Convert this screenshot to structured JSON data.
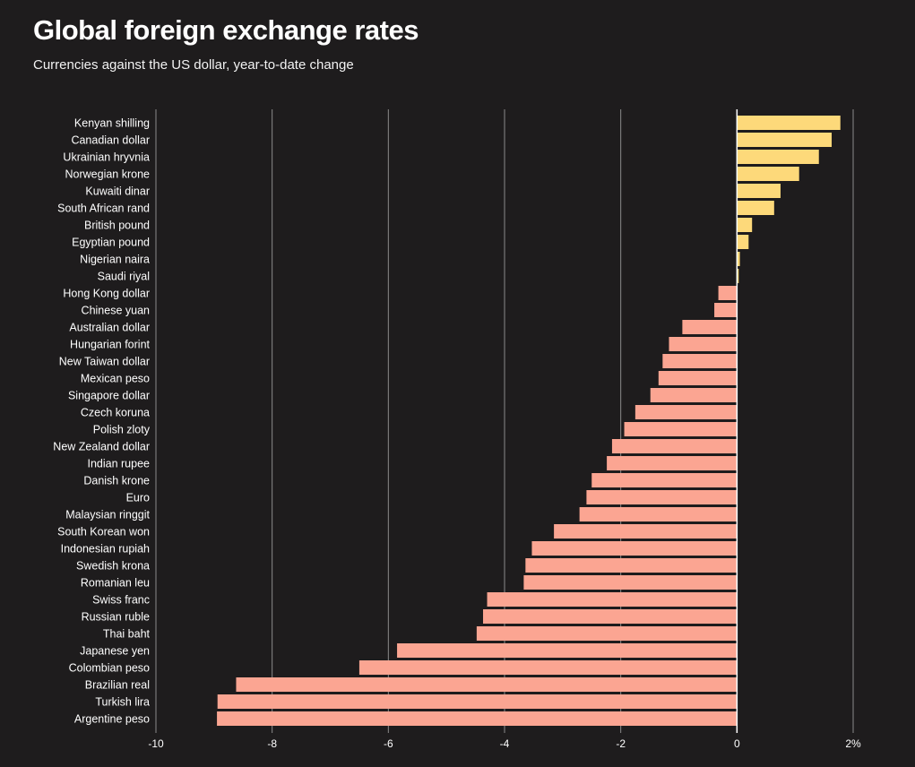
{
  "chart_data": {
    "type": "bar",
    "orientation": "horizontal",
    "title": "Global foreign exchange rates",
    "subtitle": "Currencies against the US dollar, year-to-date change",
    "xlabel": "",
    "ylabel": "",
    "xlim": [
      -10,
      2
    ],
    "xticks": [
      -10,
      -8,
      -6,
      -4,
      -2,
      0,
      2
    ],
    "xtick_labels": [
      "-10",
      "-8",
      "-6",
      "-4",
      "-2",
      "0",
      "2%"
    ],
    "grid": true,
    "colors": {
      "positive": "#fdd97a",
      "negative": "#fba592",
      "background": "#1e1c1d",
      "grid": "#8a8a8a",
      "zero_line": "#ffffff"
    },
    "categories": [
      "Kenyan shilling",
      "Canadian dollar",
      "Ukrainian hryvnia",
      "Norwegian krone",
      "Kuwaiti dinar",
      "South African rand",
      "British pound",
      "Egyptian pound",
      "Nigerian naira",
      "Saudi riyal",
      "Hong Kong dollar",
      "Chinese yuan",
      "Australian dollar",
      "Hungarian forint",
      "New Taiwan dollar",
      "Mexican peso",
      "Singapore dollar",
      "Czech koruna",
      "Polish zloty",
      "New Zealand dollar",
      "Indian rupee",
      "Danish krone",
      "Euro",
      "Malaysian ringgit",
      "South Korean won",
      "Indonesian rupiah",
      "Swedish krona",
      "Romanian leu",
      "Swiss franc",
      "Russian ruble",
      "Thai baht",
      "Japanese yen",
      "Colombian peso",
      "Brazilian real",
      "Turkish lira",
      "Argentine peso"
    ],
    "values": [
      1.78,
      1.63,
      1.41,
      1.07,
      0.75,
      0.64,
      0.26,
      0.2,
      0.05,
      0.03,
      -0.32,
      -0.39,
      -0.94,
      -1.17,
      -1.28,
      -1.35,
      -1.49,
      -1.75,
      -1.94,
      -2.15,
      -2.24,
      -2.5,
      -2.59,
      -2.71,
      -3.15,
      -3.53,
      -3.64,
      -3.67,
      -4.3,
      -4.37,
      -4.48,
      -5.85,
      -6.5,
      -8.62,
      -8.94,
      -8.95
    ]
  }
}
